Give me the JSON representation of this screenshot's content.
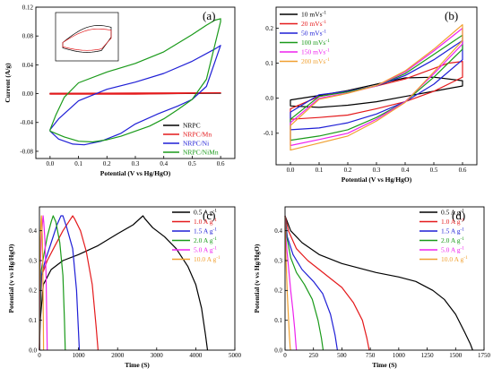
{
  "chart_data": [
    {
      "id": "a",
      "type": "line",
      "panel_label": "(a)",
      "xlabel": "Potential (V vs Hg/HgO)",
      "ylabel": "Current (A/g)",
      "xlim": [
        -0.05,
        0.65
      ],
      "ylim": [
        -0.09,
        0.12
      ],
      "xticks": [
        0.0,
        0.1,
        0.2,
        0.3,
        0.4,
        0.5,
        0.6
      ],
      "xticklabels": [
        "0.0",
        "0.1",
        "0.2",
        "0.3",
        "0.4",
        "0.5",
        "0.6"
      ],
      "yticks": [
        -0.08,
        -0.04,
        0.0,
        0.04,
        0.08,
        0.12
      ],
      "yticklabels": [
        "-0.08",
        "-0.04",
        "0.00",
        "0.04",
        "0.08",
        "0.12"
      ],
      "legend_position": "lower-right",
      "inset": true,
      "series": [
        {
          "name": "NRPC",
          "color": "#000000",
          "closed": true,
          "x": [
            0.0,
            0.3,
            0.6,
            0.3,
            0.0
          ],
          "y": [
            -0.0002,
            -0.0003,
            0.0005,
            0.0004,
            0.0002
          ]
        },
        {
          "name": "NRPC/Mn",
          "color": "#e41a1c",
          "closed": true,
          "x": [
            0.0,
            0.3,
            0.6,
            0.3,
            0.0
          ],
          "y": [
            -0.0008,
            -0.0006,
            0.0012,
            0.0008,
            0.0004
          ]
        },
        {
          "name": "NRPC/Ni",
          "color": "#1f1fd6",
          "closed": true,
          "x": [
            0.0,
            0.03,
            0.08,
            0.12,
            0.18,
            0.25,
            0.3,
            0.38,
            0.45,
            0.5,
            0.55,
            0.6,
            0.58,
            0.5,
            0.4,
            0.3,
            0.2,
            0.1,
            0.03,
            0.0
          ],
          "y": [
            -0.052,
            -0.063,
            -0.07,
            -0.071,
            -0.066,
            -0.055,
            -0.042,
            -0.028,
            -0.017,
            -0.008,
            0.01,
            0.067,
            0.062,
            0.045,
            0.028,
            0.016,
            0.006,
            -0.01,
            -0.035,
            -0.05
          ]
        },
        {
          "name": "NRPC/NiMn",
          "color": "#1a9a1a",
          "closed": true,
          "x": [
            0.0,
            0.05,
            0.1,
            0.15,
            0.2,
            0.25,
            0.3,
            0.35,
            0.4,
            0.45,
            0.5,
            0.55,
            0.6,
            0.6,
            0.58,
            0.55,
            0.5,
            0.4,
            0.3,
            0.2,
            0.1,
            0.05,
            0.02,
            0.0
          ],
          "y": [
            -0.052,
            -0.06,
            -0.066,
            -0.067,
            -0.064,
            -0.059,
            -0.052,
            -0.045,
            -0.035,
            -0.022,
            -0.008,
            0.02,
            0.1,
            0.104,
            0.102,
            0.095,
            0.082,
            0.058,
            0.042,
            0.03,
            0.015,
            -0.005,
            -0.03,
            -0.05
          ]
        }
      ]
    },
    {
      "id": "b",
      "type": "line",
      "panel_label": "(b)",
      "xlabel": "Potential (V vs Hg/HgO)",
      "ylabel": "",
      "xlim": [
        -0.05,
        0.65
      ],
      "ylim": [
        -0.19,
        0.26
      ],
      "xticks": [
        0.0,
        0.1,
        0.2,
        0.3,
        0.4,
        0.5,
        0.6
      ],
      "xticklabels": [
        "0.0",
        "0.1",
        "0.2",
        "0.3",
        "0.4",
        "0.5",
        "0.6"
      ],
      "yticks": [
        -0.1,
        0.0,
        0.1,
        0.2
      ],
      "yticklabels": [
        "-0.1",
        "0.0",
        "0.1",
        "0.2"
      ],
      "legend_position": "top-left",
      "series": [
        {
          "name": "10 mVs",
          "sup": "-1",
          "color": "#000000",
          "closed": true,
          "x": [
            0.0,
            0.1,
            0.2,
            0.3,
            0.4,
            0.5,
            0.6,
            0.6,
            0.5,
            0.4,
            0.3,
            0.2,
            0.1,
            0.0
          ],
          "y": [
            -0.022,
            -0.026,
            -0.02,
            -0.01,
            0.005,
            0.02,
            0.035,
            0.05,
            0.06,
            0.058,
            0.04,
            0.022,
            0.008,
            -0.005
          ]
        },
        {
          "name": "20 mVs",
          "sup": "-1",
          "color": "#e41a1c",
          "closed": true,
          "x": [
            0.0,
            0.1,
            0.2,
            0.3,
            0.4,
            0.5,
            0.6,
            0.6,
            0.55,
            0.5,
            0.4,
            0.3,
            0.2,
            0.1,
            0.0
          ],
          "y": [
            -0.06,
            -0.055,
            -0.048,
            -0.03,
            -0.01,
            0.02,
            0.06,
            0.105,
            0.1,
            0.085,
            0.055,
            0.035,
            0.02,
            0.005,
            -0.03
          ]
        },
        {
          "name": "50 mVs",
          "sup": "-1",
          "color": "#1f1fd6",
          "closed": true,
          "x": [
            0.0,
            0.1,
            0.2,
            0.3,
            0.4,
            0.5,
            0.6,
            0.6,
            0.5,
            0.4,
            0.3,
            0.2,
            0.1,
            0.0
          ],
          "y": [
            -0.09,
            -0.085,
            -0.07,
            -0.045,
            -0.01,
            0.04,
            0.11,
            0.165,
            0.11,
            0.065,
            0.035,
            0.02,
            0.01,
            -0.04
          ]
        },
        {
          "name": "100 mVs",
          "sup": "-1",
          "color": "#1a9a1a",
          "closed": true,
          "x": [
            0.0,
            0.1,
            0.2,
            0.3,
            0.4,
            0.5,
            0.6,
            0.6,
            0.5,
            0.4,
            0.3,
            0.2,
            0.1,
            0.0
          ],
          "y": [
            -0.12,
            -0.108,
            -0.09,
            -0.055,
            -0.01,
            0.06,
            0.14,
            0.18,
            0.125,
            0.07,
            0.035,
            0.018,
            0.005,
            -0.06
          ]
        },
        {
          "name": "150 mVs",
          "sup": "-1",
          "color": "#ee22ee",
          "closed": true,
          "x": [
            0.0,
            0.1,
            0.2,
            0.3,
            0.4,
            0.5,
            0.6,
            0.6,
            0.5,
            0.4,
            0.3,
            0.2,
            0.1,
            0.0
          ],
          "y": [
            -0.135,
            -0.118,
            -0.1,
            -0.06,
            -0.01,
            0.07,
            0.155,
            0.2,
            0.135,
            0.075,
            0.035,
            0.015,
            0.0,
            -0.07
          ]
        },
        {
          "name": "200 mVs",
          "sup": "-1",
          "color": "#f0a030",
          "closed": true,
          "x": [
            0.0,
            0.1,
            0.2,
            0.3,
            0.4,
            0.5,
            0.6,
            0.6,
            0.5,
            0.4,
            0.3,
            0.2,
            0.1,
            0.0
          ],
          "y": [
            -0.148,
            -0.128,
            -0.108,
            -0.065,
            -0.012,
            0.075,
            0.165,
            0.21,
            0.14,
            0.078,
            0.036,
            0.014,
            -0.003,
            -0.078
          ]
        }
      ]
    },
    {
      "id": "c",
      "type": "line",
      "panel_label": "(c)",
      "xlabel": "Time (S)",
      "ylabel": "Potential (v vs Hg/HgO)",
      "xlim": [
        0,
        5000
      ],
      "ylim": [
        0,
        0.48
      ],
      "xticks": [
        0,
        1000,
        2000,
        3000,
        4000,
        5000
      ],
      "xticklabels": [
        "0",
        "1000",
        "2000",
        "3000",
        "4000",
        "5000"
      ],
      "yticks": [
        0.0,
        0.1,
        0.2,
        0.3,
        0.4
      ],
      "yticklabels": [
        "0.0",
        "0.1",
        "0.2",
        "0.3",
        "0.4"
      ],
      "legend_position": "top-right",
      "series": [
        {
          "name": "0.5 A g",
          "sup": "-1",
          "color": "#000000",
          "x": [
            0,
            20,
            100,
            300,
            600,
            1000,
            1500,
            2000,
            2400,
            2650,
            2700,
            2900,
            3200,
            3500,
            3800,
            4000,
            4150,
            4250,
            4300
          ],
          "y": [
            0.0,
            0.1,
            0.22,
            0.27,
            0.3,
            0.32,
            0.35,
            0.39,
            0.42,
            0.45,
            0.44,
            0.41,
            0.38,
            0.34,
            0.28,
            0.22,
            0.14,
            0.05,
            0.0
          ]
        },
        {
          "name": "1.0 A g",
          "sup": "-1",
          "color": "#e41a1c",
          "x": [
            0,
            10,
            60,
            200,
            400,
            600,
            750,
            850,
            900,
            1050,
            1200,
            1350,
            1450,
            1500
          ],
          "y": [
            0.0,
            0.1,
            0.25,
            0.3,
            0.35,
            0.4,
            0.43,
            0.45,
            0.44,
            0.4,
            0.33,
            0.22,
            0.08,
            0.0
          ]
        },
        {
          "name": "1.5 A g",
          "sup": "-1",
          "color": "#1f1fd6",
          "x": [
            0,
            10,
            50,
            150,
            300,
            450,
            550,
            600,
            700,
            850,
            950,
            1000,
            1020
          ],
          "y": [
            0.0,
            0.1,
            0.25,
            0.3,
            0.36,
            0.42,
            0.45,
            0.45,
            0.41,
            0.34,
            0.2,
            0.06,
            0.0
          ]
        },
        {
          "name": "2.0 A g",
          "sup": "-1",
          "color": "#1a9a1a",
          "x": [
            0,
            10,
            40,
            100,
            200,
            300,
            350,
            420,
            520,
            600,
            640,
            660
          ],
          "y": [
            0.0,
            0.1,
            0.26,
            0.31,
            0.38,
            0.43,
            0.45,
            0.43,
            0.36,
            0.25,
            0.1,
            0.0
          ]
        },
        {
          "name": "5.0 A g",
          "sup": "-1",
          "color": "#ee22ee",
          "x": [
            0,
            5,
            20,
            50,
            80,
            95,
            110,
            140,
            170,
            190,
            200
          ],
          "y": [
            0.0,
            0.12,
            0.28,
            0.37,
            0.43,
            0.45,
            0.43,
            0.37,
            0.25,
            0.08,
            0.0
          ]
        },
        {
          "name": "10.0 A g",
          "sup": "-1",
          "color": "#f0a030",
          "x": [
            0,
            3,
            10,
            25,
            40,
            50,
            60,
            75,
            90,
            100,
            105
          ],
          "y": [
            0.0,
            0.12,
            0.28,
            0.37,
            0.43,
            0.45,
            0.43,
            0.37,
            0.25,
            0.08,
            0.0
          ]
        }
      ]
    },
    {
      "id": "d",
      "type": "line",
      "panel_label": "(d)",
      "xlabel": "Time (S)",
      "ylabel": "Potential (v vs Hg/HgO)",
      "xlim": [
        0,
        1750
      ],
      "ylim": [
        0,
        0.48
      ],
      "xticks": [
        0,
        250,
        500,
        750,
        1000,
        1250,
        1500,
        1750
      ],
      "xticklabels": [
        "0",
        "250",
        "500",
        "750",
        "1000",
        "1250",
        "1500",
        "1750"
      ],
      "yticks": [
        0.0,
        0.1,
        0.2,
        0.3,
        0.4
      ],
      "yticklabels": [
        "0.0",
        "0.1",
        "0.2",
        "0.3",
        "0.4"
      ],
      "legend_position": "top-right",
      "series": [
        {
          "name": "0.5 A g",
          "sup": "-1",
          "color": "#000000",
          "x": [
            0,
            50,
            150,
            300,
            500,
            800,
            1000,
            1150,
            1300,
            1400,
            1500,
            1580,
            1630,
            1650
          ],
          "y": [
            0.45,
            0.4,
            0.36,
            0.32,
            0.29,
            0.26,
            0.245,
            0.23,
            0.2,
            0.17,
            0.12,
            0.06,
            0.02,
            0.0
          ]
        },
        {
          "name": "1.0 A g",
          "sup": "-1",
          "color": "#e41a1c",
          "x": [
            0,
            30,
            100,
            200,
            300,
            400,
            500,
            600,
            680,
            720,
            740
          ],
          "y": [
            0.45,
            0.4,
            0.34,
            0.3,
            0.27,
            0.24,
            0.21,
            0.16,
            0.1,
            0.04,
            0.0
          ]
        },
        {
          "name": "1.5 A g",
          "sup": "-1",
          "color": "#1f1fd6",
          "x": [
            0,
            20,
            70,
            150,
            250,
            330,
            400,
            440,
            460
          ],
          "y": [
            0.45,
            0.38,
            0.32,
            0.27,
            0.23,
            0.19,
            0.12,
            0.05,
            0.0
          ]
        },
        {
          "name": "2.0 A g",
          "sup": "-1",
          "color": "#1a9a1a",
          "x": [
            0,
            15,
            50,
            100,
            170,
            240,
            290,
            320,
            335
          ],
          "y": [
            0.45,
            0.38,
            0.31,
            0.26,
            0.22,
            0.17,
            0.1,
            0.04,
            0.0
          ]
        },
        {
          "name": "5.0 A g",
          "sup": "-1",
          "color": "#ee22ee",
          "x": [
            0,
            10,
            30,
            50,
            70,
            85,
            95,
            100
          ],
          "y": [
            0.45,
            0.36,
            0.28,
            0.2,
            0.13,
            0.07,
            0.02,
            0.0
          ]
        },
        {
          "name": "10.0 A g",
          "sup": "-1",
          "color": "#f0a030",
          "x": [
            0,
            5,
            12,
            20,
            30,
            38,
            45,
            48
          ],
          "y": [
            0.45,
            0.35,
            0.27,
            0.19,
            0.11,
            0.05,
            0.01,
            0.0
          ]
        }
      ]
    }
  ]
}
